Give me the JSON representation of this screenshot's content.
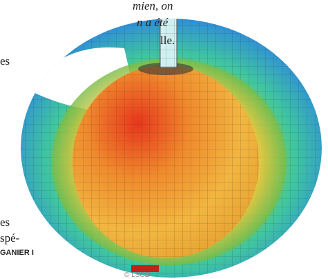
{
  "text": {
    "lines": [
      "mien, on",
      "n a été",
      "lle.",
      "es",
      "es",
      "spé-"
    ]
  },
  "credit": "GANIER I",
  "copyright": "© LSCE"
}
